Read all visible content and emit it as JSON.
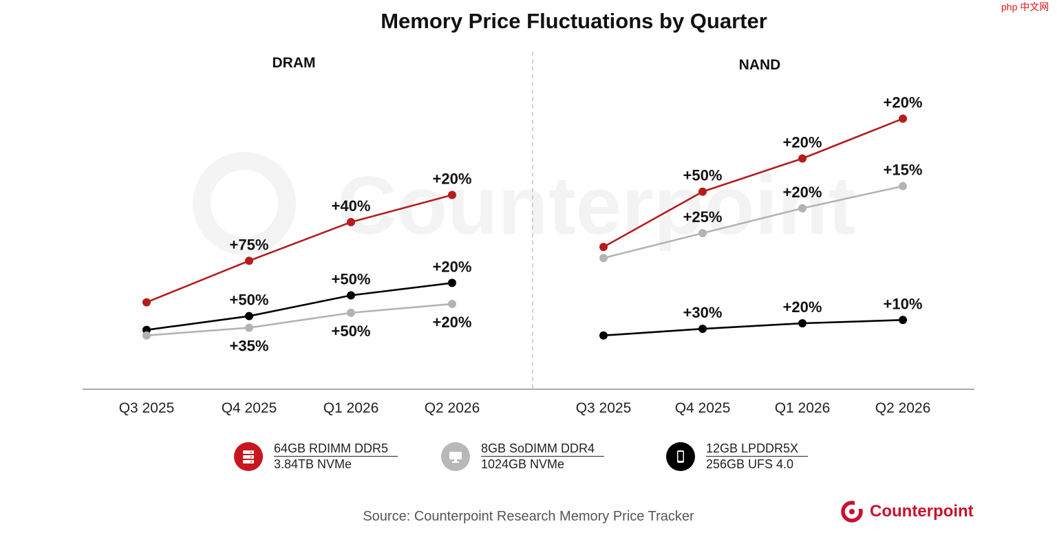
{
  "corner_watermark": "php 中文网",
  "colors": {
    "red": "#b51c1c",
    "gray": "#b3b3b3",
    "black": "#000000",
    "axis": "#666666",
    "brand": "#c8102e"
  },
  "legend": [
    {
      "line1": "64GB RDIMM DDR5",
      "line2": "3.84TB NVMe",
      "color": "#c8161e",
      "icon": "server-icon"
    },
    {
      "line1": "8GB SoDIMM DDR4",
      "line2": "1024GB NVMe",
      "color": "#b8b8b8",
      "icon": "desktop-icon"
    },
    {
      "line1": "12GB LPDDR5X",
      "line2": "256GB UFS 4.0",
      "color": "#000000",
      "icon": "smartphone-icon"
    }
  ],
  "source": "Source: Counterpoint Research Memory Price Tracker",
  "brand": {
    "name": "Counterpoint",
    "watermark": "Counterpoint"
  },
  "chart_data": [
    {
      "type": "line",
      "title": "Memory Price Fluctuations by Quarter",
      "subtitle": "DRAM",
      "categories": [
        "Q3 2025",
        "Q4 2025",
        "Q1 2026",
        "Q2 2026"
      ],
      "ylim": [
        0,
        470
      ],
      "series": [
        {
          "name": "64GB RDIMM DDR5",
          "color": "#b51c1c",
          "values": [
            100,
            175,
            245,
            294
          ],
          "labels": [
            "",
            "+75%",
            "+40%",
            "+20%"
          ],
          "label_pos": [
            "",
            "above",
            "above",
            "above"
          ]
        },
        {
          "name": "12GB LPDDR5X",
          "color": "#000000",
          "values": [
            50,
            75,
            112.5,
            135
          ],
          "labels": [
            "",
            "+50%",
            "+50%",
            "+20%"
          ],
          "label_pos": [
            "",
            "above",
            "above",
            "above"
          ]
        },
        {
          "name": "8GB SoDIMM DDR4",
          "color": "#b3b3b3",
          "values": [
            40,
            54,
            81,
            97
          ],
          "labels": [
            "",
            "+35%",
            "+50%",
            "+20%"
          ],
          "label_pos": [
            "",
            "below",
            "below",
            "below"
          ]
        }
      ]
    },
    {
      "type": "line",
      "title": "Memory Price Fluctuations by Quarter",
      "subtitle": "NAND",
      "categories": [
        "Q3 2025",
        "Q4 2025",
        "Q1 2026",
        "Q2 2026"
      ],
      "ylim": [
        0,
        470
      ],
      "series": [
        {
          "name": "3.84TB NVMe",
          "color": "#b51c1c",
          "values": [
            200,
            300,
            360,
            432
          ],
          "labels": [
            "",
            "+50%",
            "+20%",
            "+20%"
          ],
          "label_pos": [
            "",
            "above",
            "above",
            "above"
          ]
        },
        {
          "name": "1024GB NVMe",
          "color": "#b3b3b3",
          "values": [
            180,
            225,
            270,
            310
          ],
          "labels": [
            "",
            "+25%",
            "+20%",
            "+15%"
          ],
          "label_pos": [
            "",
            "above",
            "above",
            "above"
          ]
        },
        {
          "name": "256GB UFS 4.0",
          "color": "#000000",
          "values": [
            40,
            52,
            62,
            68
          ],
          "labels": [
            "",
            "+30%",
            "+20%",
            "+10%"
          ],
          "label_pos": [
            "",
            "above",
            "above",
            "above"
          ]
        }
      ]
    }
  ]
}
